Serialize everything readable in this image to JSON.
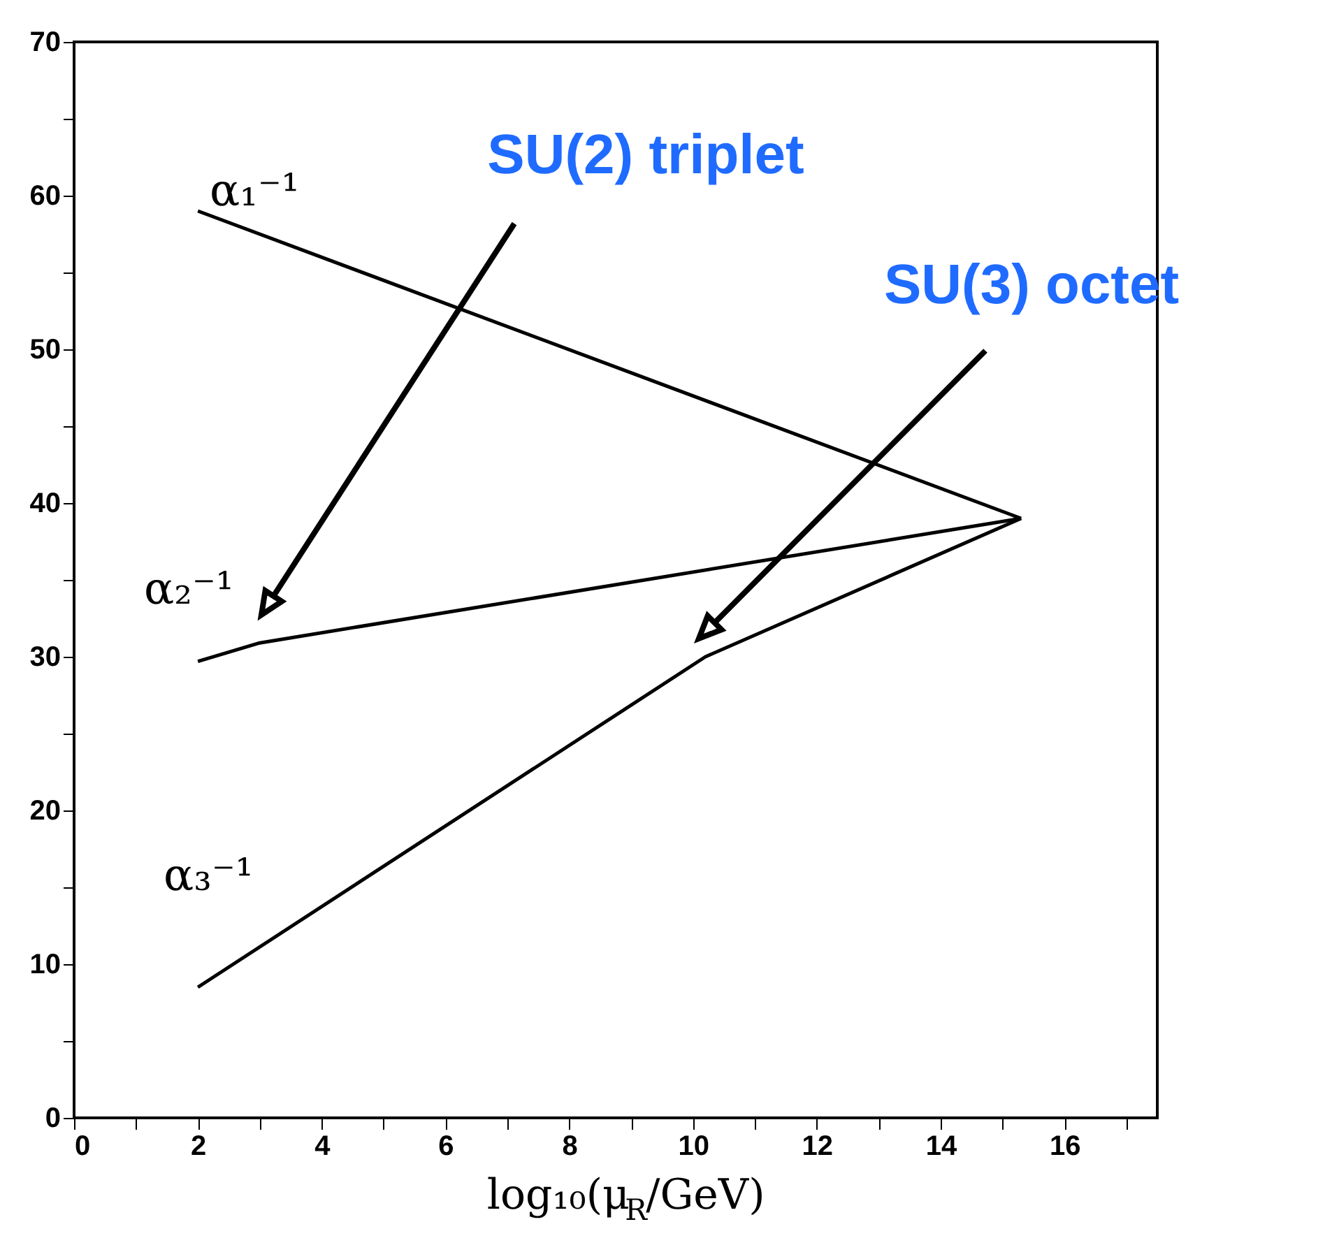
{
  "chart_data": {
    "type": "line",
    "xlabel": "log₁₀(μ$_{R}$/GeV)",
    "xlim": [
      0,
      17.5
    ],
    "ylim": [
      0,
      70
    ],
    "xticks": [
      0,
      {
        "value": 1,
        "label": null
      },
      2,
      {
        "value": 3,
        "label": null
      },
      4,
      {
        "value": 5,
        "label": null
      },
      6,
      {
        "value": 7,
        "label": null
      },
      8,
      {
        "value": 9,
        "label": null
      },
      10,
      {
        "value": 11,
        "label": null
      },
      12,
      {
        "value": 13,
        "label": null
      },
      14,
      {
        "value": 15,
        "label": null
      },
      16,
      {
        "value": 17,
        "label": null
      }
    ],
    "yticks": [
      0,
      {
        "value": 5,
        "label": null
      },
      10,
      {
        "value": 15,
        "label": null
      },
      20,
      {
        "value": 25,
        "label": null
      },
      30,
      {
        "value": 35,
        "label": null
      },
      40,
      {
        "value": 45,
        "label": null
      },
      50,
      {
        "value": 55,
        "label": null
      },
      60,
      {
        "value": 65,
        "label": null
      },
      70
    ],
    "grid": false,
    "legend": false,
    "marker": "none",
    "line_style": "solid",
    "series": [
      {
        "color": "#000000",
        "x": [
          2,
          15.3
        ],
        "values": [
          59,
          39
        ]
      },
      {
        "color": "#000000",
        "x": [
          2,
          3,
          15.3
        ],
        "values": [
          29.7,
          30.9,
          39
        ]
      },
      {
        "color": "#000000",
        "x": [
          2,
          10.2,
          15.3
        ],
        "values": [
          8.5,
          30,
          39
        ]
      }
    ],
    "annotations": [
      "α₁⁻¹",
      "α₂⁻¹",
      "α₃⁻¹",
      "SU(2) triplet",
      "SU(3) octet"
    ]
  }
}
